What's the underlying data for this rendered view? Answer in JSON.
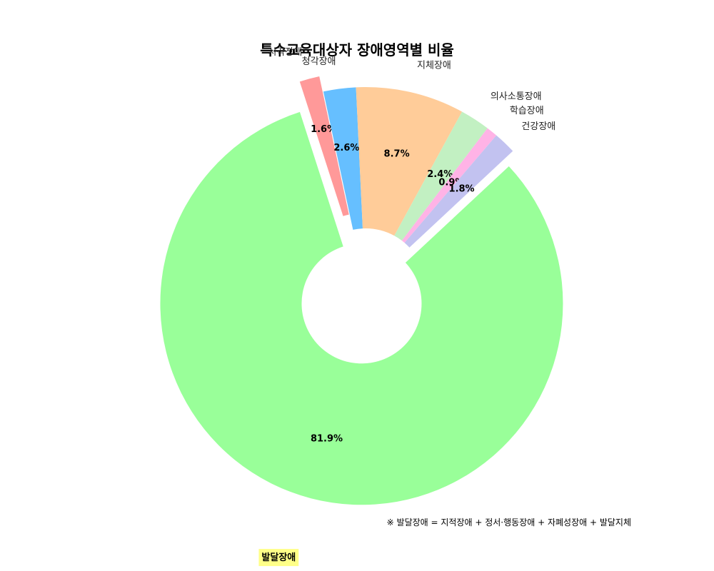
{
  "chart_data": {
    "type": "pie",
    "donut": true,
    "title": "특수교육대상자 장애영역별 비율",
    "footnote": "※ 발달장애 = 지적장애 + 정서·행동장애 + 자폐성장애 + 발달지체",
    "slices": [
      {
        "label": "발달장애",
        "value": 81.9,
        "value_label": "81.9%",
        "color": "#99ff99",
        "exploded": true,
        "highlight": true,
        "highlight_color": "#ffff88"
      },
      {
        "label": "시각장애",
        "value": 1.6,
        "value_label": "1.6%",
        "color": "#ff9999",
        "exploded": true
      },
      {
        "label": "청각장애",
        "value": 2.6,
        "value_label": "2.6%",
        "color": "#66bfff",
        "exploded": false
      },
      {
        "label": "지체장애",
        "value": 8.7,
        "value_label": "8.7%",
        "color": "#ffcc99",
        "exploded": false
      },
      {
        "label": "의사소통장애",
        "value": 2.4,
        "value_label": "2.4%",
        "color": "#c2f0c2",
        "exploded": false
      },
      {
        "label": "학습장애",
        "value": 0.9,
        "value_label": "0.9%",
        "color": "#ffb3e6",
        "exploded": false
      },
      {
        "label": "건강장애",
        "value": 1.8,
        "value_label": "1.8%",
        "color": "#c2c2f0",
        "exploded": false
      }
    ]
  }
}
